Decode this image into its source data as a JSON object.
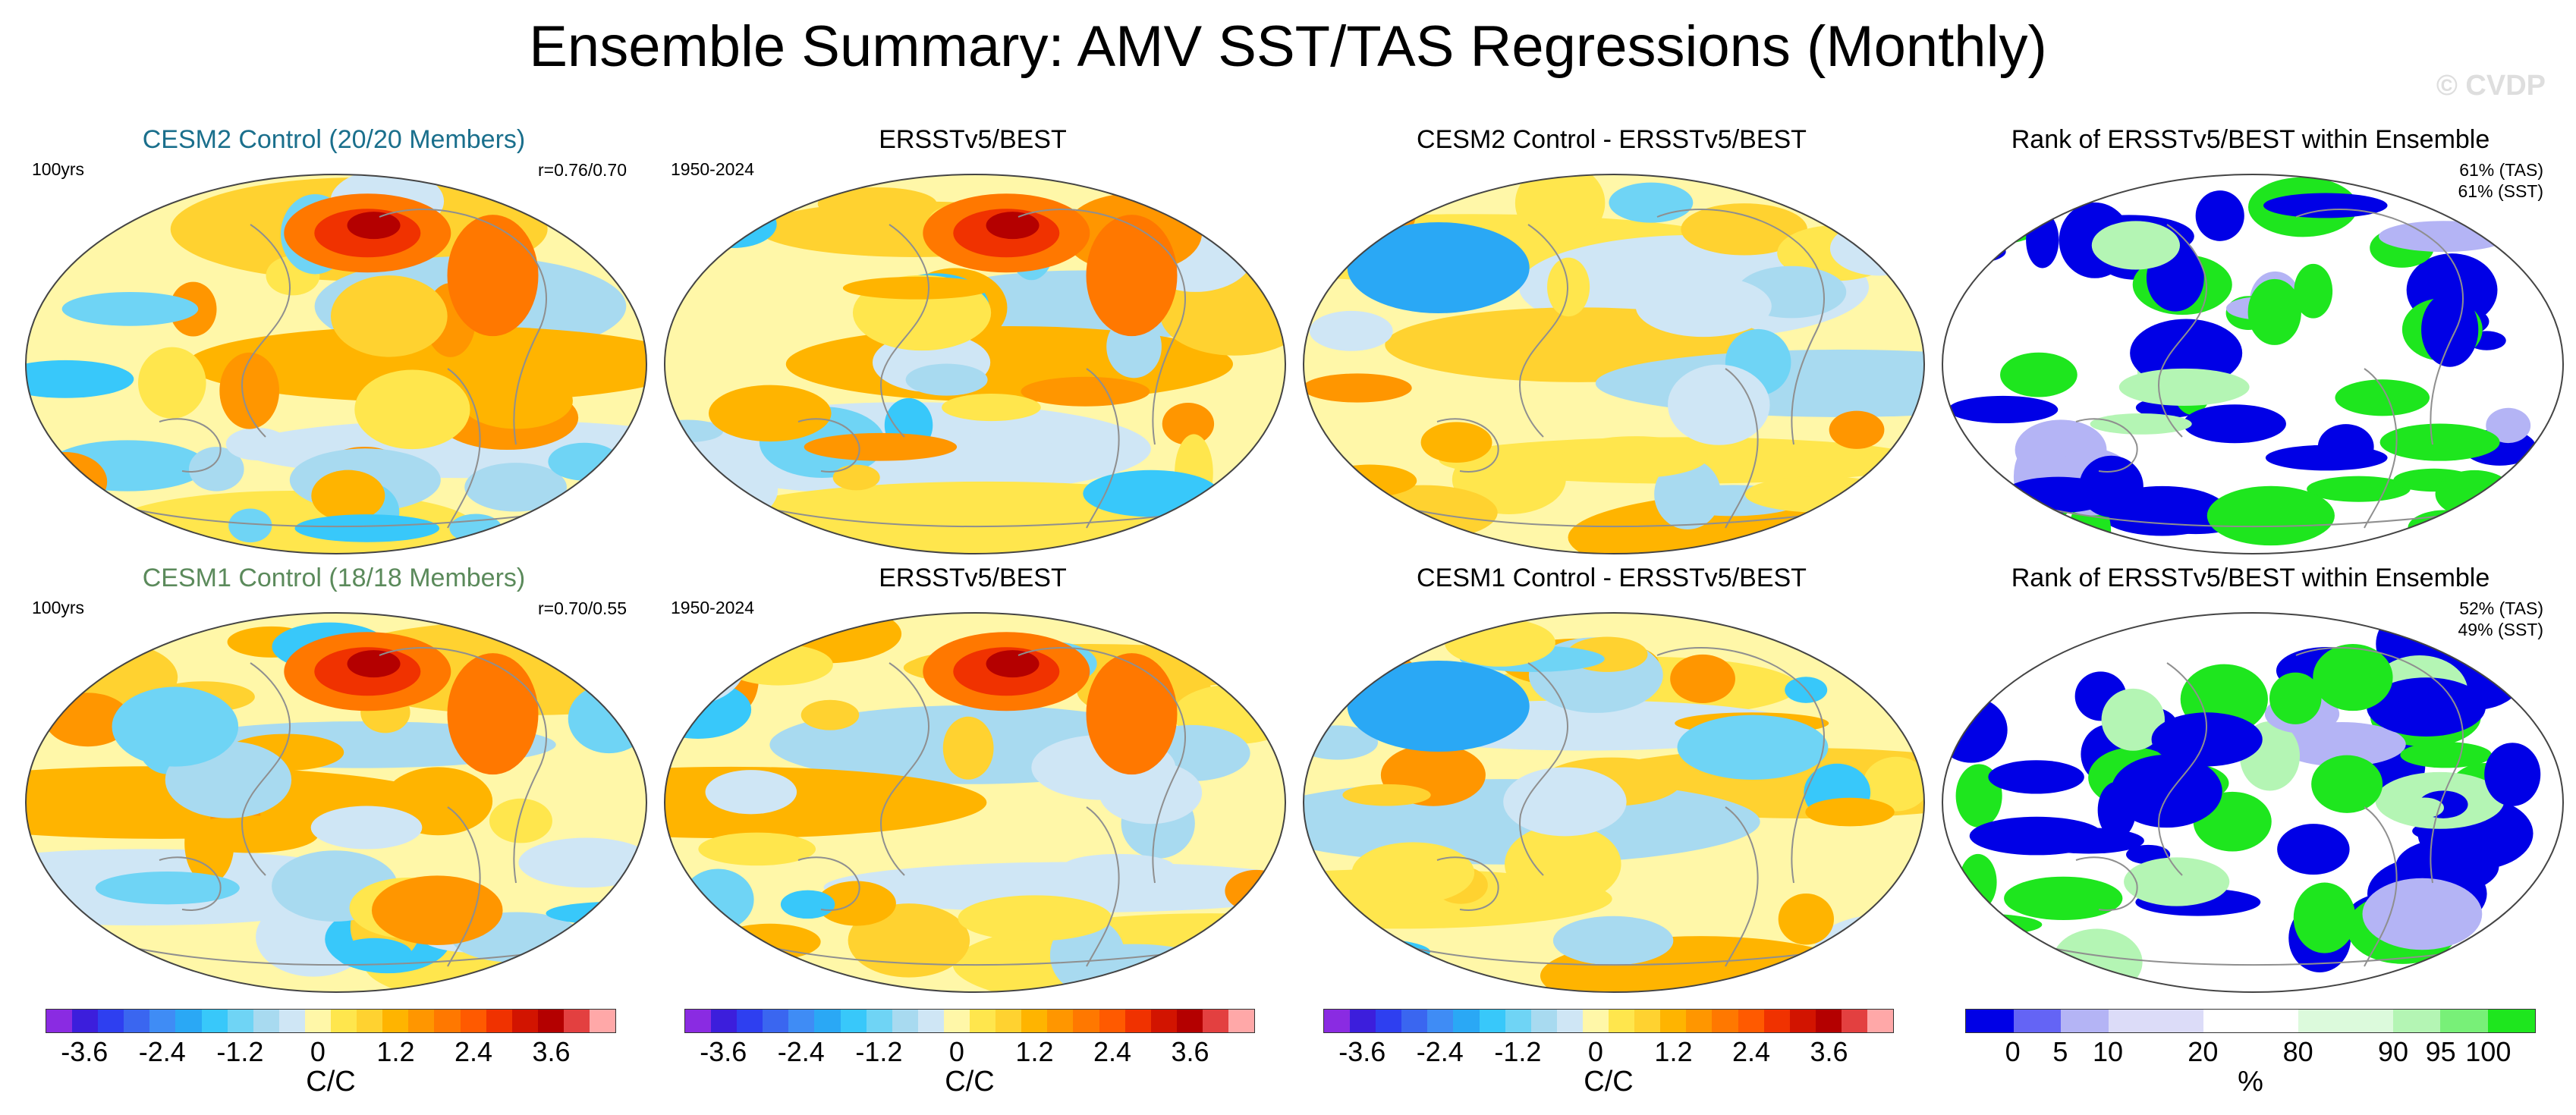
{
  "figure": {
    "title": "Ensemble Summary: AMV SST/TAS Regressions (Monthly)",
    "watermark": "© CVDP"
  },
  "rows": [
    {
      "panels": [
        {
          "title": "CESM2 Control (20/20 Members)",
          "title_color": "#1a6f8c",
          "left": "100yrs",
          "right": "r=0.76/0.70",
          "kind": "anomaly_model"
        },
        {
          "title": "ERSSTv5/BEST",
          "title_color": "#000000",
          "left": "1950-2024",
          "right": "",
          "kind": "anomaly_obs"
        },
        {
          "title": "CESM2 Control - ERSSTv5/BEST",
          "title_color": "#000000",
          "left": "",
          "right": "",
          "kind": "anomaly_diff"
        },
        {
          "title": "Rank of ERSSTv5/BEST within Ensemble",
          "title_color": "#000000",
          "left": "",
          "right_lines": [
            "61% (TAS)",
            "61% (SST)"
          ],
          "kind": "rank"
        }
      ]
    },
    {
      "panels": [
        {
          "title": "CESM1 Control (18/18 Members)",
          "title_color": "#5b8a5b",
          "left": "100yrs",
          "right": "r=0.70/0.55",
          "kind": "anomaly_model"
        },
        {
          "title": "ERSSTv5/BEST",
          "title_color": "#000000",
          "left": "1950-2024",
          "right": "",
          "kind": "anomaly_obs"
        },
        {
          "title": "CESM1 Control - ERSSTv5/BEST",
          "title_color": "#000000",
          "left": "",
          "right": "",
          "kind": "anomaly_diff"
        },
        {
          "title": "Rank of ERSSTv5/BEST within Ensemble",
          "title_color": "#000000",
          "left": "",
          "right_lines": [
            "52% (TAS)",
            "49% (SST)"
          ],
          "kind": "rank"
        }
      ]
    }
  ],
  "colorbars": [
    {
      "unit": "C/C",
      "ticks": [
        "-3.6",
        "-2.4",
        "-1.2",
        "0",
        "1.2",
        "2.4",
        "3.6"
      ],
      "tick_index": [
        1.5,
        4.5,
        7.5,
        10.5,
        13.5,
        16.5,
        19.5
      ],
      "colors": [
        "#8a2be2",
        "#3c1edc",
        "#2e3ff0",
        "#3a66f0",
        "#3f8cf5",
        "#2aa8f5",
        "#38c8fa",
        "#6fd4f5",
        "#a8daf0",
        "#cfe6f5",
        "#fff7a8",
        "#ffe64d",
        "#ffd230",
        "#ffb400",
        "#ff9600",
        "#ff7800",
        "#ff5a00",
        "#f03200",
        "#d21400",
        "#b40000",
        "#e34040",
        "#ffa8a8"
      ]
    },
    {
      "unit": "C/C",
      "ticks": [
        "-3.6",
        "-2.4",
        "-1.2",
        "0",
        "1.2",
        "2.4",
        "3.6"
      ],
      "tick_index": [
        1.5,
        4.5,
        7.5,
        10.5,
        13.5,
        16.5,
        19.5
      ],
      "colors": [
        "#8a2be2",
        "#3c1edc",
        "#2e3ff0",
        "#3a66f0",
        "#3f8cf5",
        "#2aa8f5",
        "#38c8fa",
        "#6fd4f5",
        "#a8daf0",
        "#cfe6f5",
        "#fff7a8",
        "#ffe64d",
        "#ffd230",
        "#ffb400",
        "#ff9600",
        "#ff7800",
        "#ff5a00",
        "#f03200",
        "#d21400",
        "#b40000",
        "#e34040",
        "#ffa8a8"
      ]
    },
    {
      "unit": "C/C",
      "ticks": [
        "-3.6",
        "-2.4",
        "-1.2",
        "0",
        "1.2",
        "2.4",
        "3.6"
      ],
      "tick_index": [
        1.5,
        4.5,
        7.5,
        10.5,
        13.5,
        16.5,
        19.5
      ],
      "colors": [
        "#8a2be2",
        "#3c1edc",
        "#2e3ff0",
        "#3a66f0",
        "#3f8cf5",
        "#2aa8f5",
        "#38c8fa",
        "#6fd4f5",
        "#a8daf0",
        "#cfe6f5",
        "#fff7a8",
        "#ffe64d",
        "#ffd230",
        "#ffb400",
        "#ff9600",
        "#ff7800",
        "#ff5a00",
        "#f03200",
        "#d21400",
        "#b40000",
        "#e34040",
        "#ffa8a8"
      ]
    },
    {
      "unit": "%",
      "ticks": [
        "0",
        "5",
        "10",
        "20",
        "80",
        "90",
        "95",
        "100"
      ],
      "tick_index": [
        1,
        2,
        3,
        5,
        7,
        9,
        10,
        11
      ],
      "colors": [
        "#0000e6",
        "#6464f5",
        "#b4b4f5",
        "#dcdcf8",
        "#dcdcf8",
        "#ffffff",
        "#ffffff",
        "#dcfadc",
        "#dcfadc",
        "#b4f5b4",
        "#78f078",
        "#1ee61e"
      ]
    }
  ]
}
